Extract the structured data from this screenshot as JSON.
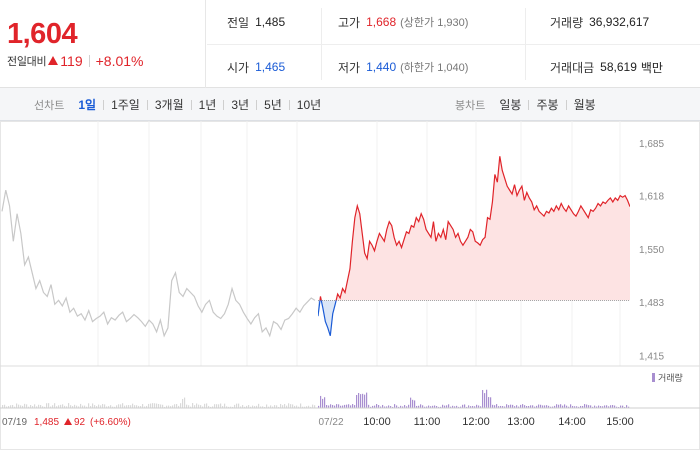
{
  "quote": {
    "price": "1,604",
    "change_label": "전일대비",
    "change_amount": "119",
    "change_percent": "+8.01%",
    "cells": [
      {
        "key": "전일",
        "value": "1,485",
        "tone": "normal",
        "sub": ""
      },
      {
        "key": "고가",
        "value": "1,668",
        "tone": "red",
        "sub": "(상한가 1,930)"
      },
      {
        "key": "거래량",
        "value": "36,932,617",
        "tone": "normal",
        "sub": ""
      },
      {
        "key": "시가",
        "value": "1,465",
        "tone": "blue",
        "sub": ""
      },
      {
        "key": "저가",
        "value": "1,440",
        "tone": "blue",
        "sub": "(하한가 1,040)"
      },
      {
        "key": "거래대금",
        "value": "58,619",
        "tone": "normal",
        "sub": "백만"
      }
    ]
  },
  "toolbar": {
    "line_chart_label": "선차트",
    "line_periods": [
      "1일",
      "1주일",
      "3개월",
      "1년",
      "3년",
      "5년",
      "10년"
    ],
    "active_period": "1일",
    "candle_chart_label": "봉차트",
    "candle_periods": [
      "일봉",
      "주봉",
      "월봉"
    ]
  },
  "colors": {
    "up": "#e0242a",
    "down": "#1a5bd6",
    "prev_day_line": "#c8c8c8",
    "fill_up": "#fde3e3",
    "volume": "#a88fd0"
  },
  "chart_data": {
    "type": "line",
    "title": "",
    "ylabel": "",
    "xlabel": "",
    "y_ticks": [
      1415,
      1483,
      1550,
      1618,
      1685
    ],
    "y_tick_labels": [
      "1,415",
      "1,483",
      "1,550",
      "1,618",
      "1,685"
    ],
    "ylim": [
      1408,
      1695
    ],
    "baseline": 1485,
    "x_ticks": [
      "07/19",
      "07/22",
      "10:00",
      "11:00",
      "12:00",
      "13:00",
      "14:00",
      "15:00"
    ],
    "prev_day_summary": {
      "date": "07/19",
      "close": "1,485",
      "change": "92",
      "change_percent": "(+6.60%)"
    },
    "series": [
      {
        "values": [
          1598,
          1625,
          1605,
          1560,
          1595,
          1570,
          1530,
          1540,
          1520,
          1500,
          1510,
          1495,
          1490,
          1505,
          1480,
          1485,
          1478,
          1488,
          1470,
          1475,
          1465,
          1468,
          1460,
          1472,
          1458,
          1462,
          1465,
          1470,
          1455,
          1463,
          1460,
          1466,
          1470,
          1458,
          1462,
          1467,
          1463,
          1458,
          1452,
          1460,
          1455,
          1445,
          1460,
          1440,
          1450,
          1510,
          1520,
          1495,
          1490,
          1500,
          1495,
          1490,
          1478,
          1470,
          1480,
          1485,
          1470,
          1465,
          1462,
          1468,
          1480,
          1500,
          1485,
          1480,
          1470,
          1462,
          1455,
          1463,
          1468,
          1445,
          1450,
          1440,
          1458,
          1455,
          1448,
          1460,
          1462,
          1468,
          1475,
          1470,
          1478,
          1483,
          1488,
          1485
        ]
      },
      {
        "values": [
          1465,
          1490,
          1475,
          1458,
          1450,
          1440,
          1468,
          1480,
          1493,
          1488,
          1500,
          1495,
          1510,
          1525,
          1560,
          1590,
          1605,
          1595,
          1570,
          1545,
          1538,
          1560,
          1555,
          1548,
          1560,
          1570,
          1565,
          1560,
          1575,
          1585,
          1580,
          1565,
          1555,
          1560,
          1552,
          1562,
          1572,
          1570,
          1580,
          1578,
          1590,
          1585,
          1595,
          1588,
          1575,
          1570,
          1565,
          1585,
          1560,
          1570,
          1565,
          1575,
          1562,
          1585,
          1580,
          1575,
          1565,
          1570,
          1560,
          1555,
          1560,
          1565,
          1575,
          1572,
          1560,
          1558,
          1555,
          1562,
          1565,
          1590,
          1588,
          1610,
          1645,
          1635,
          1668,
          1650,
          1640,
          1630,
          1625,
          1620,
          1632,
          1618,
          1625,
          1630,
          1612,
          1622,
          1615,
          1610,
          1600,
          1605,
          1598,
          1595,
          1592,
          1598,
          1596,
          1602,
          1598,
          1605,
          1600,
          1608,
          1602,
          1598,
          1605,
          1600,
          1595,
          1592,
          1598,
          1605,
          1600,
          1595,
          1590,
          1600,
          1598,
          1602,
          1608,
          1605,
          1610,
          1608,
          1612,
          1615,
          1610,
          1615,
          1612,
          1618,
          1616,
          1618,
          1612,
          1604
        ]
      }
    ],
    "volume_legend": "거래량"
  }
}
